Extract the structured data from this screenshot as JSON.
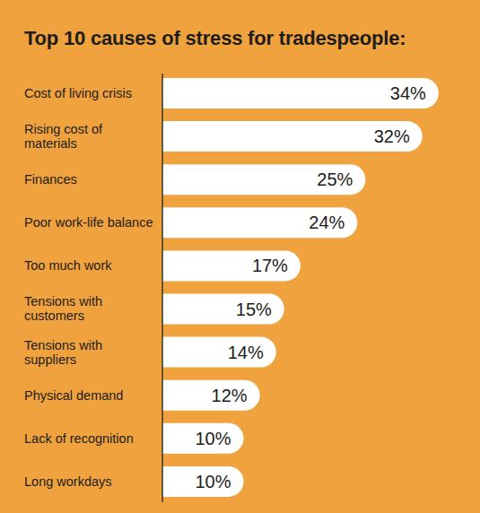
{
  "chart_data": {
    "type": "bar",
    "title": "Top 10 causes of stress for tradespeople:",
    "orientation": "horizontal",
    "categories": [
      "Cost of living crisis",
      "Rising cost of materials",
      "Finances",
      "Poor work-life balance",
      "Too much work",
      "Tensions with customers",
      "Tensions with suppliers",
      "Physical demand",
      "Lack of recognition",
      "Long workdays"
    ],
    "values": [
      34,
      32,
      25,
      24,
      17,
      15,
      14,
      12,
      10,
      10
    ],
    "value_labels": [
      "34%",
      "32%",
      "25%",
      "24%",
      "17%",
      "15%",
      "14%",
      "12%",
      "10%",
      "10%"
    ],
    "color": "#ffffff",
    "xlim": [
      0,
      37
    ],
    "data_labels": true,
    "tick_labels": false,
    "grid": false
  }
}
